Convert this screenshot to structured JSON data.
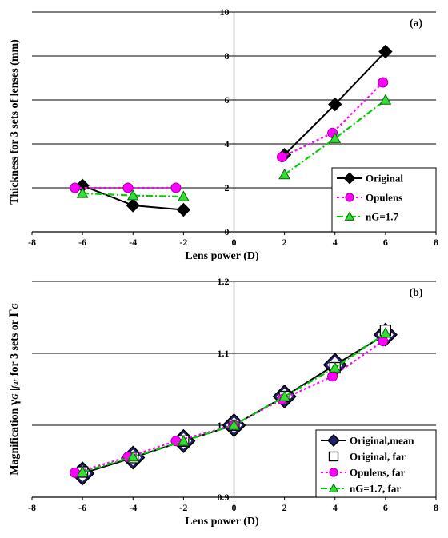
{
  "chart_data": [
    {
      "type": "line",
      "panel_label": "(a)",
      "xlabel": "Lens power (D)",
      "ylabel": "Thickness for  3  sets of lenses (mm)",
      "xlim": [
        -8,
        8
      ],
      "ylim": [
        0,
        10
      ],
      "xticks": [
        -8,
        -6,
        -4,
        -2,
        0,
        2,
        4,
        6,
        8
      ],
      "yticks": [
        0,
        2,
        4,
        6,
        8,
        10
      ],
      "grid": "horizontal",
      "legend_position": "bottom-right",
      "series": [
        {
          "name": "Original",
          "color": "#000000",
          "dash": "solid",
          "marker": "diamond",
          "segments": [
            [
              [
                -6,
                2.1
              ],
              [
                -4,
                1.2
              ],
              [
                -2,
                1.0
              ]
            ],
            [
              [
                2,
                3.5
              ],
              [
                4,
                5.8
              ],
              [
                6,
                8.2
              ]
            ]
          ]
        },
        {
          "name": "Opulens",
          "color": "#ff00ff",
          "dash": "dotted",
          "marker": "circle",
          "segments": [
            [
              [
                -6.3,
                2.0
              ],
              [
                -4.2,
                2.0
              ],
              [
                -2.3,
                2.0
              ]
            ],
            [
              [
                1.9,
                3.4
              ],
              [
                3.9,
                4.5
              ],
              [
                5.9,
                6.8
              ]
            ]
          ]
        },
        {
          "name": "nG=1.7",
          "color": "#00cc00",
          "dash": "dashdot",
          "marker": "triangle",
          "segments": [
            [
              [
                -6,
                1.75
              ],
              [
                -4,
                1.65
              ],
              [
                -2,
                1.6
              ]
            ],
            [
              [
                2,
                2.6
              ],
              [
                4,
                4.25
              ],
              [
                6,
                6.0
              ]
            ]
          ]
        }
      ]
    },
    {
      "type": "line",
      "panel_label": "(b)",
      "xlabel": "Lens power (D)",
      "ylabel_parts": [
        "Magnification ",
        "γ",
        "G",
        " |",
        "far",
        "  for 3 sets or ",
        "Γ",
        "G"
      ],
      "xlim": [
        -8,
        8
      ],
      "ylim": [
        0.9,
        1.2
      ],
      "xticks": [
        -8,
        -6,
        -4,
        -2,
        0,
        2,
        4,
        6,
        8
      ],
      "yticks": [
        0.9,
        1.0,
        1.1,
        1.2
      ],
      "ytick_labels": [
        "0.9",
        "1.0",
        "1.1",
        "1.2"
      ],
      "grid": "horizontal",
      "legend_position": "bottom-right",
      "series": [
        {
          "name": "Original,mean",
          "color": "#000000",
          "dash": "solid",
          "marker": "diamond-big",
          "segments": [
            [
              [
                -6,
                0.933
              ],
              [
                -4,
                0.955
              ],
              [
                -2,
                0.978
              ],
              [
                0,
                1.0
              ],
              [
                2,
                1.04
              ],
              [
                4,
                1.084
              ],
              [
                6,
                1.126
              ]
            ]
          ]
        },
        {
          "name": "Original, far",
          "color": "#000000",
          "dash": "none",
          "marker": "square-open",
          "segments": [
            [
              [
                -6,
                0.935
              ],
              [
                -4,
                0.955
              ],
              [
                -2,
                0.978
              ],
              [
                0,
                1.0
              ],
              [
                2,
                1.04
              ],
              [
                4,
                1.08
              ],
              [
                6,
                1.132
              ]
            ]
          ]
        },
        {
          "name": "Opulens, far",
          "color": "#ff00ff",
          "dash": "dotted",
          "marker": "circle",
          "segments": [
            [
              [
                -6.3,
                0.934
              ],
              [
                -4.2,
                0.956
              ],
              [
                -2.3,
                0.978
              ],
              [
                0,
                1.0
              ],
              [
                1.9,
                1.036
              ],
              [
                3.9,
                1.068
              ],
              [
                5.9,
                1.117
              ]
            ]
          ]
        },
        {
          "name": "nG=1.7, far",
          "color": "#00cc00",
          "dash": "dashdot",
          "marker": "triangle",
          "segments": [
            [
              [
                -6,
                0.935
              ],
              [
                -4,
                0.956
              ],
              [
                -2,
                0.978
              ],
              [
                0,
                1.0
              ],
              [
                2,
                1.04
              ],
              [
                4,
                1.08
              ],
              [
                6,
                1.128
              ]
            ]
          ]
        }
      ]
    }
  ]
}
